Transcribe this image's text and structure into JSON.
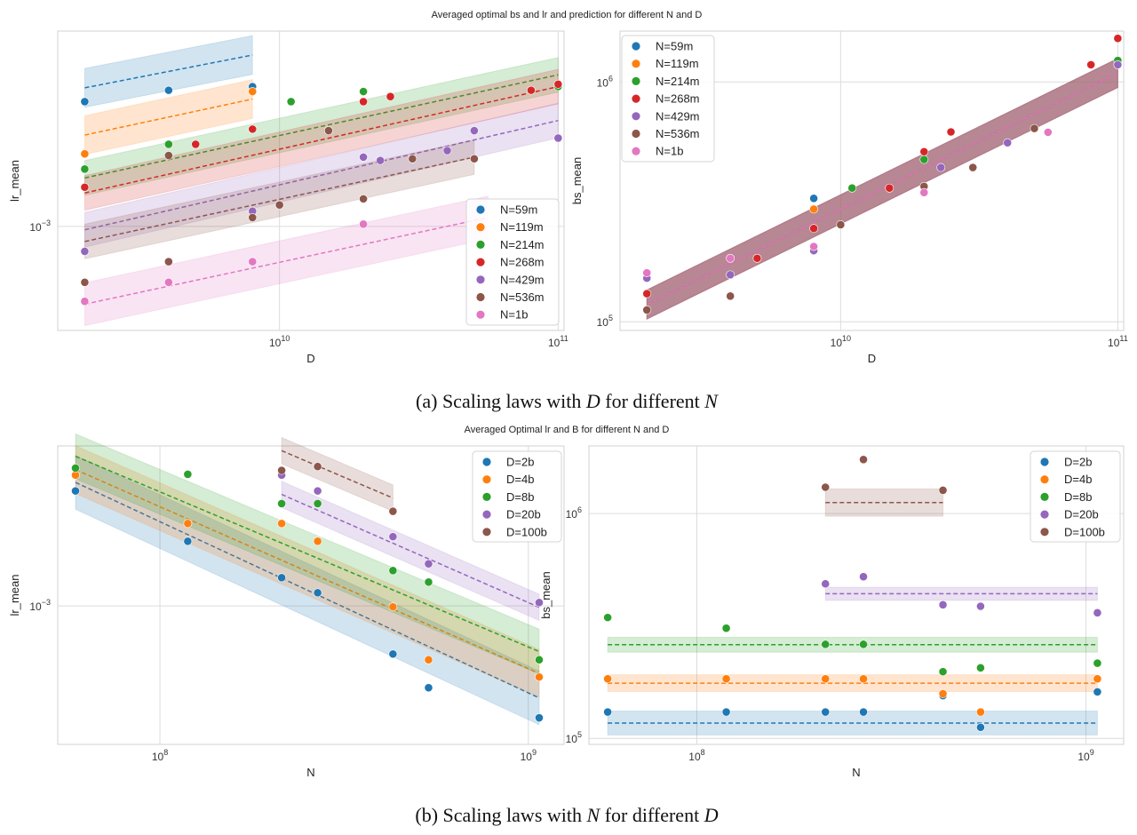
{
  "figure": {
    "suptitle_a": "Averaged optimal bs and lr and prediction for different N and D",
    "suptitle_b": "Averaged Optimal lr and B for different N and D",
    "caption_a_prefix": "(a) Scaling laws with ",
    "caption_a_var": "D",
    "caption_a_mid": " for different ",
    "caption_a_var2": "N",
    "caption_b_prefix": "(b) Scaling laws with ",
    "caption_b_var": "N",
    "caption_b_mid": " for different ",
    "caption_b_var2": "D"
  },
  "chart_data": [
    {
      "type": "scatter",
      "xlabel": "D",
      "ylabel": "lr_mean",
      "xscale": "log",
      "yscale": "log",
      "xlim": [
        1600000000.0,
        105000000000.0
      ],
      "ylim": [
        0.00063,
        0.00238
      ],
      "xticks": [
        {
          "v": 10000000000.0,
          "base": "10",
          "exp": "10"
        },
        {
          "v": 100000000000.0,
          "base": "10",
          "exp": "11"
        }
      ],
      "yticks": [
        {
          "v": 0.001,
          "base": "10",
          "exp": "−3"
        }
      ],
      "legend": "bottom-right",
      "grid": true,
      "series": [
        {
          "name": "N=59m",
          "color": "#1f77b4",
          "points": [
            [
              2000000000.0,
              0.00174
            ],
            [
              4000000000.0,
              0.00183
            ],
            [
              8000000000.0,
              0.00186
            ]
          ],
          "fit": {
            "x0": 2000000000.0,
            "y0": 0.00185,
            "x1": 8000000000.0,
            "y1": 0.00214,
            "band": 1.09
          }
        },
        {
          "name": "N=119m",
          "color": "#ff7f0e",
          "points": [
            [
              2000000000.0,
              0.00138
            ],
            [
              8000000000.0,
              0.00182
            ]
          ],
          "fit": {
            "x0": 2000000000.0,
            "y0": 0.0015,
            "x1": 8000000000.0,
            "y1": 0.00176,
            "band": 1.09
          }
        },
        {
          "name": "N=214m",
          "color": "#2ca02c",
          "points": [
            [
              2000000000.0,
              0.00129
            ],
            [
              4000000000.0,
              0.00144
            ],
            [
              11000000000.0,
              0.00174
            ],
            [
              20000000000.0,
              0.00182
            ],
            [
              100000000000.0,
              0.00186
            ]
          ],
          "fit": {
            "x0": 2000000000.0,
            "y0": 0.00124,
            "x1": 100000000000.0,
            "y1": 0.00196,
            "band": 1.08
          }
        },
        {
          "name": "N=268m",
          "color": "#d62728",
          "points": [
            [
              2000000000.0,
              0.00119
            ],
            [
              5000000000.0,
              0.00144
            ],
            [
              8000000000.0,
              0.00154
            ],
            [
              20000000000.0,
              0.00174
            ],
            [
              25000000000.0,
              0.00178
            ],
            [
              80000000000.0,
              0.00183
            ],
            [
              100000000000.0,
              0.00188
            ]
          ],
          "fit": {
            "x0": 2000000000.0,
            "y0": 0.00116,
            "x1": 100000000000.0,
            "y1": 0.00186,
            "band": 1.08
          }
        },
        {
          "name": "N=429m",
          "color": "#9467bd",
          "points": [
            [
              2000000000.0,
              0.000895
            ],
            [
              8000000000.0,
              0.00107
            ],
            [
              20000000000.0,
              0.00136
            ],
            [
              23000000000.0,
              0.00134
            ],
            [
              40000000000.0,
              0.0014
            ],
            [
              50000000000.0,
              0.00153
            ],
            [
              100000000000.0,
              0.00148
            ]
          ],
          "fit": {
            "x0": 2000000000.0,
            "y0": 0.000985,
            "x1": 100000000000.0,
            "y1": 0.0016,
            "band": 1.08
          }
        },
        {
          "name": "N=536m",
          "color": "#8c564b",
          "points": [
            [
              2000000000.0,
              0.00078
            ],
            [
              4000000000.0,
              0.000855
            ],
            [
              4000000000.0,
              0.00137
            ],
            [
              8000000000.0,
              0.00104
            ],
            [
              10000000000.0,
              0.0011
            ],
            [
              15000000000.0,
              0.00153
            ],
            [
              20000000000.0,
              0.00113
            ],
            [
              30000000000.0,
              0.00135
            ],
            [
              50000000000.0,
              0.00135
            ]
          ],
          "fit": {
            "x0": 2000000000.0,
            "y0": 0.000935,
            "x1": 50000000000.0,
            "y1": 0.00136,
            "band": 1.08
          }
        },
        {
          "name": "N=1b",
          "color": "#e377c2",
          "points": [
            [
              2000000000.0,
              0.000717
            ],
            [
              4000000000.0,
              0.00078
            ],
            [
              8000000000.0,
              0.000855
            ],
            [
              20000000000.0,
              0.00101
            ]
          ],
          "fit": {
            "x0": 2000000000.0,
            "y0": 0.000708,
            "x1": 56000000000.0,
            "y1": 0.00104,
            "band": 1.1
          }
        }
      ]
    },
    {
      "type": "scatter",
      "xlabel": "D",
      "ylabel": "bs_mean",
      "xscale": "log",
      "yscale": "log",
      "xlim": [
        1600000000.0,
        105000000000.0
      ],
      "ylim": [
        92000,
        1630000
      ],
      "xticks": [
        {
          "v": 10000000000.0,
          "base": "10",
          "exp": "10"
        },
        {
          "v": 100000000000.0,
          "base": "10",
          "exp": "11"
        }
      ],
      "yticks": [
        {
          "v": 100000,
          "base": "10",
          "exp": "5"
        },
        {
          "v": 1000000,
          "base": "10",
          "exp": "6"
        }
      ],
      "legend": "top-left",
      "grid": true,
      "series": [
        {
          "name": "N=59m",
          "color": "#1f77b4",
          "points": [
            [
              8000000000.0,
              327000
            ]
          ],
          "fit": {
            "x0": 2000000000.0,
            "y0": 118000,
            "x1": 100000000000.0,
            "y1": 1090000,
            "band": 1.15
          }
        },
        {
          "name": "N=119m",
          "color": "#ff7f0e",
          "points": [
            [
              8000000000.0,
              295000
            ]
          ],
          "fit": {
            "x0": 2000000000.0,
            "y0": 118000,
            "x1": 100000000000.0,
            "y1": 1090000,
            "band": 1.15
          }
        },
        {
          "name": "N=214m",
          "color": "#2ca02c",
          "points": [
            [
              11000000000.0,
              361000
            ],
            [
              20000000000.0,
              475000
            ],
            [
              100000000000.0,
              1230000
            ]
          ],
          "fit": {
            "x0": 2000000000.0,
            "y0": 118000,
            "x1": 100000000000.0,
            "y1": 1090000,
            "band": 1.15
          }
        },
        {
          "name": "N=268m",
          "color": "#d62728",
          "points": [
            [
              2000000000.0,
              131000
            ],
            [
              5000000000.0,
              184000
            ],
            [
              8000000000.0,
              245000
            ],
            [
              15000000000.0,
              361000
            ],
            [
              20000000000.0,
              512000
            ],
            [
              25000000000.0,
              619000
            ],
            [
              80000000000.0,
              1180000
            ],
            [
              100000000000.0,
              1520000
            ]
          ],
          "fit": {
            "x0": 2000000000.0,
            "y0": 118000,
            "x1": 100000000000.0,
            "y1": 1090000,
            "band": 1.15
          }
        },
        {
          "name": "N=429m",
          "color": "#9467bd",
          "points": [
            [
              2000000000.0,
              152000
            ],
            [
              4000000000.0,
              157000
            ],
            [
              8000000000.0,
              198000
            ],
            [
              23000000000.0,
              440000
            ],
            [
              40000000000.0,
              558000
            ],
            [
              100000000000.0,
              1180000
            ]
          ],
          "fit": {
            "x0": 2000000000.0,
            "y0": 118000,
            "x1": 100000000000.0,
            "y1": 1090000,
            "band": 1.15
          }
        },
        {
          "name": "N=536m",
          "color": "#8c564b",
          "points": [
            [
              2000000000.0,
              112000
            ],
            [
              4000000000.0,
              128000
            ],
            [
              10000000000.0,
              254000
            ],
            [
              20000000000.0,
              367000
            ],
            [
              30000000000.0,
              440000
            ],
            [
              50000000000.0,
              640000
            ]
          ],
          "fit": {
            "x0": 2000000000.0,
            "y0": 118000,
            "x1": 100000000000.0,
            "y1": 1090000,
            "band": 1.15
          }
        },
        {
          "name": "N=1b",
          "color": "#e377c2",
          "points": [
            [
              2000000000.0,
              160000
            ],
            [
              4000000000.0,
              184000
            ],
            [
              8000000000.0,
              206000
            ],
            [
              20000000000.0,
              346000
            ],
            [
              56000000000.0,
              617000
            ]
          ],
          "fit": {
            "x0": 2000000000.0,
            "y0": 118000,
            "x1": 100000000000.0,
            "y1": 1090000,
            "band": 1.15
          }
        }
      ]
    },
    {
      "type": "scatter",
      "xlabel": "N",
      "ylabel": "lr_mean",
      "xscale": "log",
      "yscale": "log",
      "xlim": [
        52800000.0,
        1250000000.0
      ],
      "ylim": [
        0.000445,
        0.00255
      ],
      "xticks": [
        {
          "v": 100000000.0,
          "base": "10",
          "exp": "8"
        },
        {
          "v": 1000000000.0,
          "base": "10",
          "exp": "9"
        }
      ],
      "yticks": [
        {
          "v": 0.001,
          "base": "10",
          "exp": "−3"
        }
      ],
      "legend": "top-right",
      "grid": true,
      "series": [
        {
          "name": "D=2b",
          "color": "#1f77b4",
          "points": [
            [
              59000000.0,
              0.00196
            ],
            [
              119000000.0,
              0.00146
            ],
            [
              214000000.0,
              0.00118
            ],
            [
              268000000.0,
              0.00108
            ],
            [
              429000000.0,
              0.000755
            ],
            [
              536000000.0,
              0.00062
            ],
            [
              1070000000.0,
              0.00052
            ]
          ],
          "fit": {
            "x0": 59000000.0,
            "y0": 0.00206,
            "x1": 1070000000.0,
            "y1": 0.000584,
            "band": 1.17
          }
        },
        {
          "name": "D=4b",
          "color": "#ff7f0e",
          "points": [
            [
              59000000.0,
              0.00215
            ],
            [
              119000000.0,
              0.00162
            ],
            [
              214000000.0,
              0.00162
            ],
            [
              268000000.0,
              0.00146
            ],
            [
              429000000.0,
              0.000995
            ],
            [
              536000000.0,
              0.00073
            ],
            [
              1070000000.0,
              0.00066
            ]
          ],
          "fit": {
            "x0": 59000000.0,
            "y0": 0.00222,
            "x1": 1070000000.0,
            "y1": 0.000674,
            "band": 1.15
          }
        },
        {
          "name": "D=8b",
          "color": "#2ca02c",
          "points": [
            [
              59000000.0,
              0.00224
            ],
            [
              119000000.0,
              0.00216
            ],
            [
              214000000.0,
              0.00182
            ],
            [
              268000000.0,
              0.00182
            ],
            [
              429000000.0,
              0.00123
            ],
            [
              536000000.0,
              0.00115
            ],
            [
              1070000000.0,
              0.00073
            ]
          ],
          "fit": {
            "x0": 59000000.0,
            "y0": 0.0024,
            "x1": 1070000000.0,
            "y1": 0.000766,
            "band": 1.14
          }
        },
        {
          "name": "D=20b",
          "color": "#9467bd",
          "points": [
            [
              214000000.0,
              0.00215
            ],
            [
              268000000.0,
              0.00196
            ],
            [
              429000000.0,
              0.0015
            ],
            [
              536000000.0,
              0.00128
            ],
            [
              1070000000.0,
              0.00102
            ]
          ],
          "fit": {
            "x0": 214000000.0,
            "y0": 0.00192,
            "x1": 1070000000.0,
            "y1": 0.000992,
            "band": 1.08
          }
        },
        {
          "name": "D=100b",
          "color": "#8c564b",
          "points": [
            [
              214000000.0,
              0.00221
            ],
            [
              268000000.0,
              0.00226
            ],
            [
              429000000.0,
              0.00174
            ]
          ],
          "fit": {
            "x0": 214000000.0,
            "y0": 0.00248,
            "x1": 429000000.0,
            "y1": 0.00188,
            "band": 1.08
          }
        }
      ]
    },
    {
      "type": "scatter",
      "xlabel": "N",
      "ylabel": "bs_mean",
      "xscale": "log",
      "yscale": "log",
      "xlim": [
        52800000.0,
        1250000000.0
      ],
      "ylim": [
        94000,
        2000000
      ],
      "xticks": [
        {
          "v": 100000000.0,
          "base": "10",
          "exp": "8"
        },
        {
          "v": 1000000000.0,
          "base": "10",
          "exp": "9"
        }
      ],
      "yticks": [
        {
          "v": 100000,
          "base": "10",
          "exp": "5"
        },
        {
          "v": 1000000,
          "base": "10",
          "exp": "6"
        }
      ],
      "legend": "top-right",
      "grid": true,
      "series": [
        {
          "name": "D=2b",
          "color": "#1f77b4",
          "points": [
            [
              59000000.0,
              131000
            ],
            [
              119000000.0,
              131000
            ],
            [
              214000000.0,
              131000
            ],
            [
              268000000.0,
              131000
            ],
            [
              429000000.0,
              155000
            ],
            [
              536000000.0,
              112000
            ],
            [
              1070000000.0,
              161000
            ]
          ],
          "fit": {
            "x0": 59000000.0,
            "y0": 117000,
            "x1": 1070000000.0,
            "y1": 117000,
            "band": 1.13
          }
        },
        {
          "name": "D=4b",
          "color": "#ff7f0e",
          "points": [
            [
              59000000.0,
              184000
            ],
            [
              119000000.0,
              184000
            ],
            [
              214000000.0,
              184000
            ],
            [
              268000000.0,
              184000
            ],
            [
              429000000.0,
              158000
            ],
            [
              536000000.0,
              131000
            ],
            [
              1070000000.0,
              184000
            ]
          ],
          "fit": {
            "x0": 59000000.0,
            "y0": 176000,
            "x1": 1070000000.0,
            "y1": 176000,
            "band": 1.09
          }
        },
        {
          "name": "D=8b",
          "color": "#2ca02c",
          "points": [
            [
              59000000.0,
              345000
            ],
            [
              119000000.0,
              309000
            ],
            [
              214000000.0,
              262000
            ],
            [
              268000000.0,
              262000
            ],
            [
              429000000.0,
              198000
            ],
            [
              536000000.0,
              206000
            ],
            [
              1070000000.0,
              216000
            ]
          ],
          "fit": {
            "x0": 59000000.0,
            "y0": 261000,
            "x1": 1070000000.0,
            "y1": 261000,
            "band": 1.08
          }
        },
        {
          "name": "D=20b",
          "color": "#9467bd",
          "points": [
            [
              214000000.0,
              487000
            ],
            [
              268000000.0,
              524000
            ],
            [
              429000000.0,
              393000
            ],
            [
              536000000.0,
              387000
            ],
            [
              1070000000.0,
              362000
            ]
          ],
          "fit": {
            "x0": 214000000.0,
            "y0": 440000,
            "x1": 1070000000.0,
            "y1": 440000,
            "band": 1.07
          }
        },
        {
          "name": "D=100b",
          "color": "#8c564b",
          "points": [
            [
              214000000.0,
              1310000
            ],
            [
              268000000.0,
              1740000
            ],
            [
              429000000.0,
              1270000
            ]
          ],
          "fit": {
            "x0": 214000000.0,
            "y0": 1120000,
            "x1": 429000000.0,
            "y1": 1120000,
            "band": 1.15
          }
        }
      ]
    }
  ]
}
